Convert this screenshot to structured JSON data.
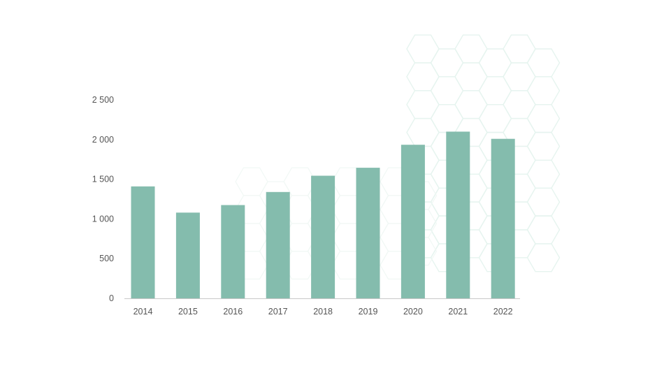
{
  "chart_data": {
    "type": "bar",
    "categories": [
      "2014",
      "2015",
      "2016",
      "2017",
      "2018",
      "2019",
      "2020",
      "2021",
      "2022"
    ],
    "values": [
      1410,
      1080,
      1175,
      1340,
      1545,
      1645,
      1935,
      2100,
      2010
    ],
    "title": "",
    "xlabel": "",
    "ylabel": "",
    "ylim": [
      0,
      2500
    ],
    "yticks": [
      0,
      500,
      1000,
      1500,
      2000,
      2500
    ],
    "ytick_labels": [
      "0",
      "500",
      "1 000",
      "1 500",
      "2 000",
      "2 500"
    ],
    "grid": false,
    "legend": "none",
    "bar_color": "#84bcad",
    "axis_color": "#c8c8c8",
    "decoration": "hexagon-pattern"
  }
}
